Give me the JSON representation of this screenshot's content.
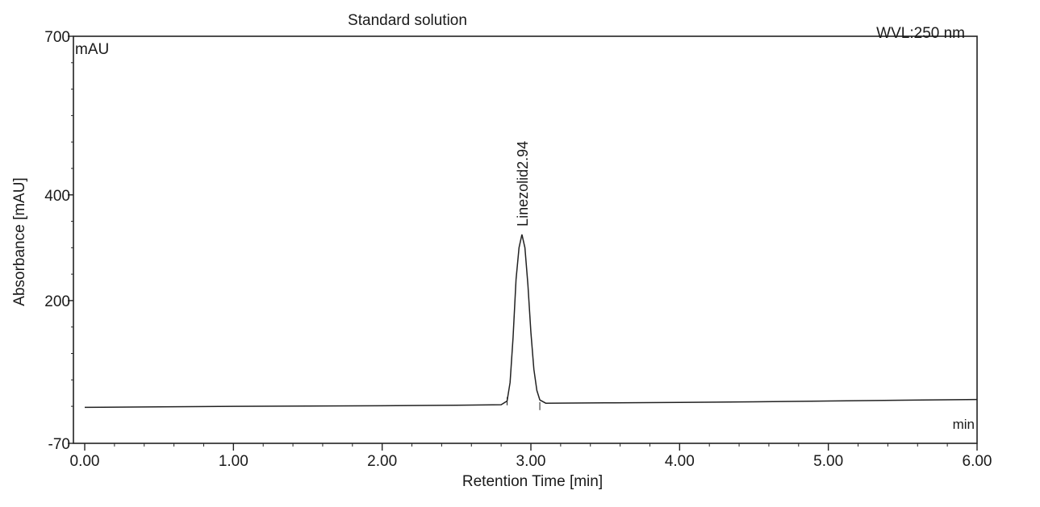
{
  "chart_data": {
    "type": "line",
    "title": "Standard solution",
    "wavelength_label": "WVL:250 nm",
    "y_unit_label": "mAU",
    "x_unit_label": "min",
    "xlabel": "Retention Time [min]",
    "ylabel": "Absorbance [mAU]",
    "xlim": [
      0.0,
      6.0
    ],
    "ylim": [
      -70,
      700
    ],
    "x_ticks": [
      0,
      1,
      2,
      3,
      4,
      5,
      6
    ],
    "x_tick_labels": [
      "0.00",
      "1.00",
      "2.00",
      "3.00",
      "4.00",
      "5.00",
      "6.00"
    ],
    "y_ticks": [
      -70,
      200,
      400,
      700
    ],
    "y_tick_labels": [
      "-70",
      "200",
      "400",
      "700"
    ],
    "grid": false,
    "series": [
      {
        "x": [
          0.0,
          0.5,
          1.0,
          1.5,
          2.0,
          2.5,
          2.8,
          2.84,
          2.86,
          2.88,
          2.9,
          2.92,
          2.94,
          2.96,
          2.98,
          3.0,
          3.02,
          3.04,
          3.06,
          3.1,
          3.5,
          4.0,
          4.5,
          5.0,
          5.5,
          6.0
        ],
        "y": [
          -2,
          -1,
          0,
          0.5,
          1,
          2,
          3,
          10,
          45,
          130,
          240,
          300,
          325,
          300,
          230,
          140,
          70,
          30,
          12,
          6,
          6.5,
          7.5,
          8.5,
          10,
          11.5,
          13
        ]
      }
    ],
    "peaks": [
      {
        "x": 2.94,
        "y": 325,
        "label": "Linezolid2.94"
      }
    ]
  }
}
